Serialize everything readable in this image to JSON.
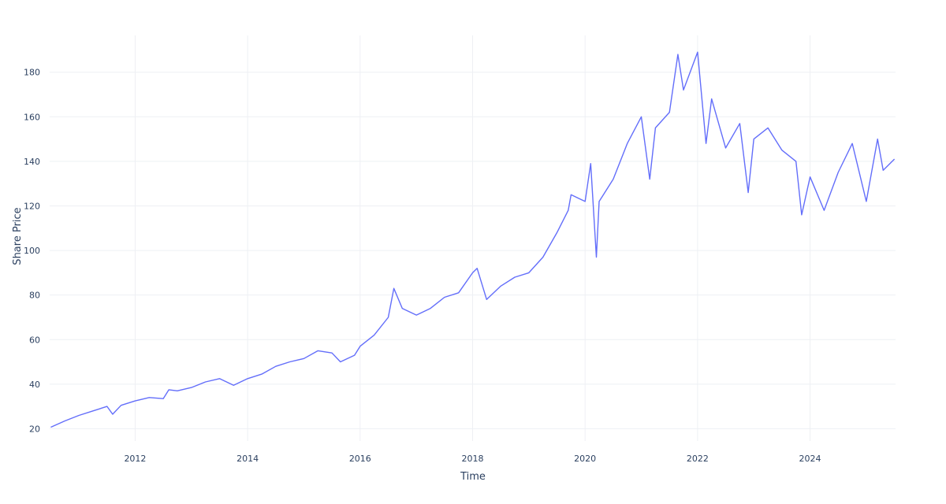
{
  "chart_data": {
    "type": "line",
    "title": "",
    "xlabel": "Time",
    "ylabel": "Share Price",
    "xlim": [
      2010.48,
      2025.52
    ],
    "ylim": [
      14.5,
      196.5
    ],
    "x_ticks": [
      2012,
      2014,
      2016,
      2018,
      2020,
      2022,
      2024
    ],
    "x_tick_labels": [
      "2012",
      "2014",
      "2016",
      "2018",
      "2020",
      "2022",
      "2024"
    ],
    "y_ticks": [
      20,
      40,
      60,
      80,
      100,
      120,
      140,
      160,
      180
    ],
    "y_tick_labels": [
      "20",
      "40",
      "60",
      "80",
      "100",
      "120",
      "140",
      "160",
      "180"
    ],
    "grid": true,
    "legend": "none",
    "colors": {
      "series": "#636efa",
      "grid": "#eef0f4",
      "text": "#2a3f5f"
    },
    "series": [
      {
        "x": [
          2010.5,
          2010.75,
          2011.0,
          2011.25,
          2011.5,
          2011.6,
          2011.75,
          2012.0,
          2012.25,
          2012.5,
          2012.6,
          2012.75,
          2013.0,
          2013.25,
          2013.5,
          2013.75,
          2014.0,
          2014.25,
          2014.5,
          2014.75,
          2015.0,
          2015.25,
          2015.5,
          2015.65,
          2015.9,
          2016.0,
          2016.25,
          2016.5,
          2016.6,
          2016.75,
          2017.0,
          2017.25,
          2017.5,
          2017.75,
          2018.0,
          2018.08,
          2018.25,
          2018.5,
          2018.75,
          2019.0,
          2019.25,
          2019.5,
          2019.7,
          2019.75,
          2020.0,
          2020.1,
          2020.2,
          2020.25,
          2020.5,
          2020.75,
          2021.0,
          2021.15,
          2021.25,
          2021.5,
          2021.65,
          2021.75,
          2022.0,
          2022.15,
          2022.25,
          2022.5,
          2022.75,
          2022.9,
          2023.0,
          2023.25,
          2023.5,
          2023.75,
          2023.85,
          2024.0,
          2024.25,
          2024.5,
          2024.75,
          2025.0,
          2025.2,
          2025.3,
          2025.5
        ],
        "y": [
          20.7,
          23.5,
          26.0,
          28.0,
          30.0,
          26.5,
          30.5,
          32.5,
          34.0,
          33.5,
          37.5,
          37.0,
          38.5,
          41.0,
          42.5,
          39.5,
          42.5,
          44.5,
          48.0,
          50.0,
          51.5,
          55.0,
          54.0,
          50.0,
          53.0,
          57.0,
          62.0,
          70.0,
          83.0,
          74.0,
          71.0,
          74.0,
          79.0,
          81.0,
          90.0,
          92.0,
          78.0,
          84.0,
          88.0,
          90.0,
          97.0,
          108.0,
          118.0,
          125.0,
          122.0,
          139.0,
          97.0,
          122.0,
          132.0,
          148.0,
          160.0,
          132.0,
          155.0,
          162.0,
          188.0,
          172.0,
          189.0,
          148.0,
          168.0,
          146.0,
          157.0,
          126.0,
          150.0,
          155.0,
          145.0,
          140.0,
          116.0,
          133.0,
          118.0,
          135.0,
          148.0,
          122.0,
          150.0,
          136.0,
          141.0
        ]
      }
    ]
  }
}
